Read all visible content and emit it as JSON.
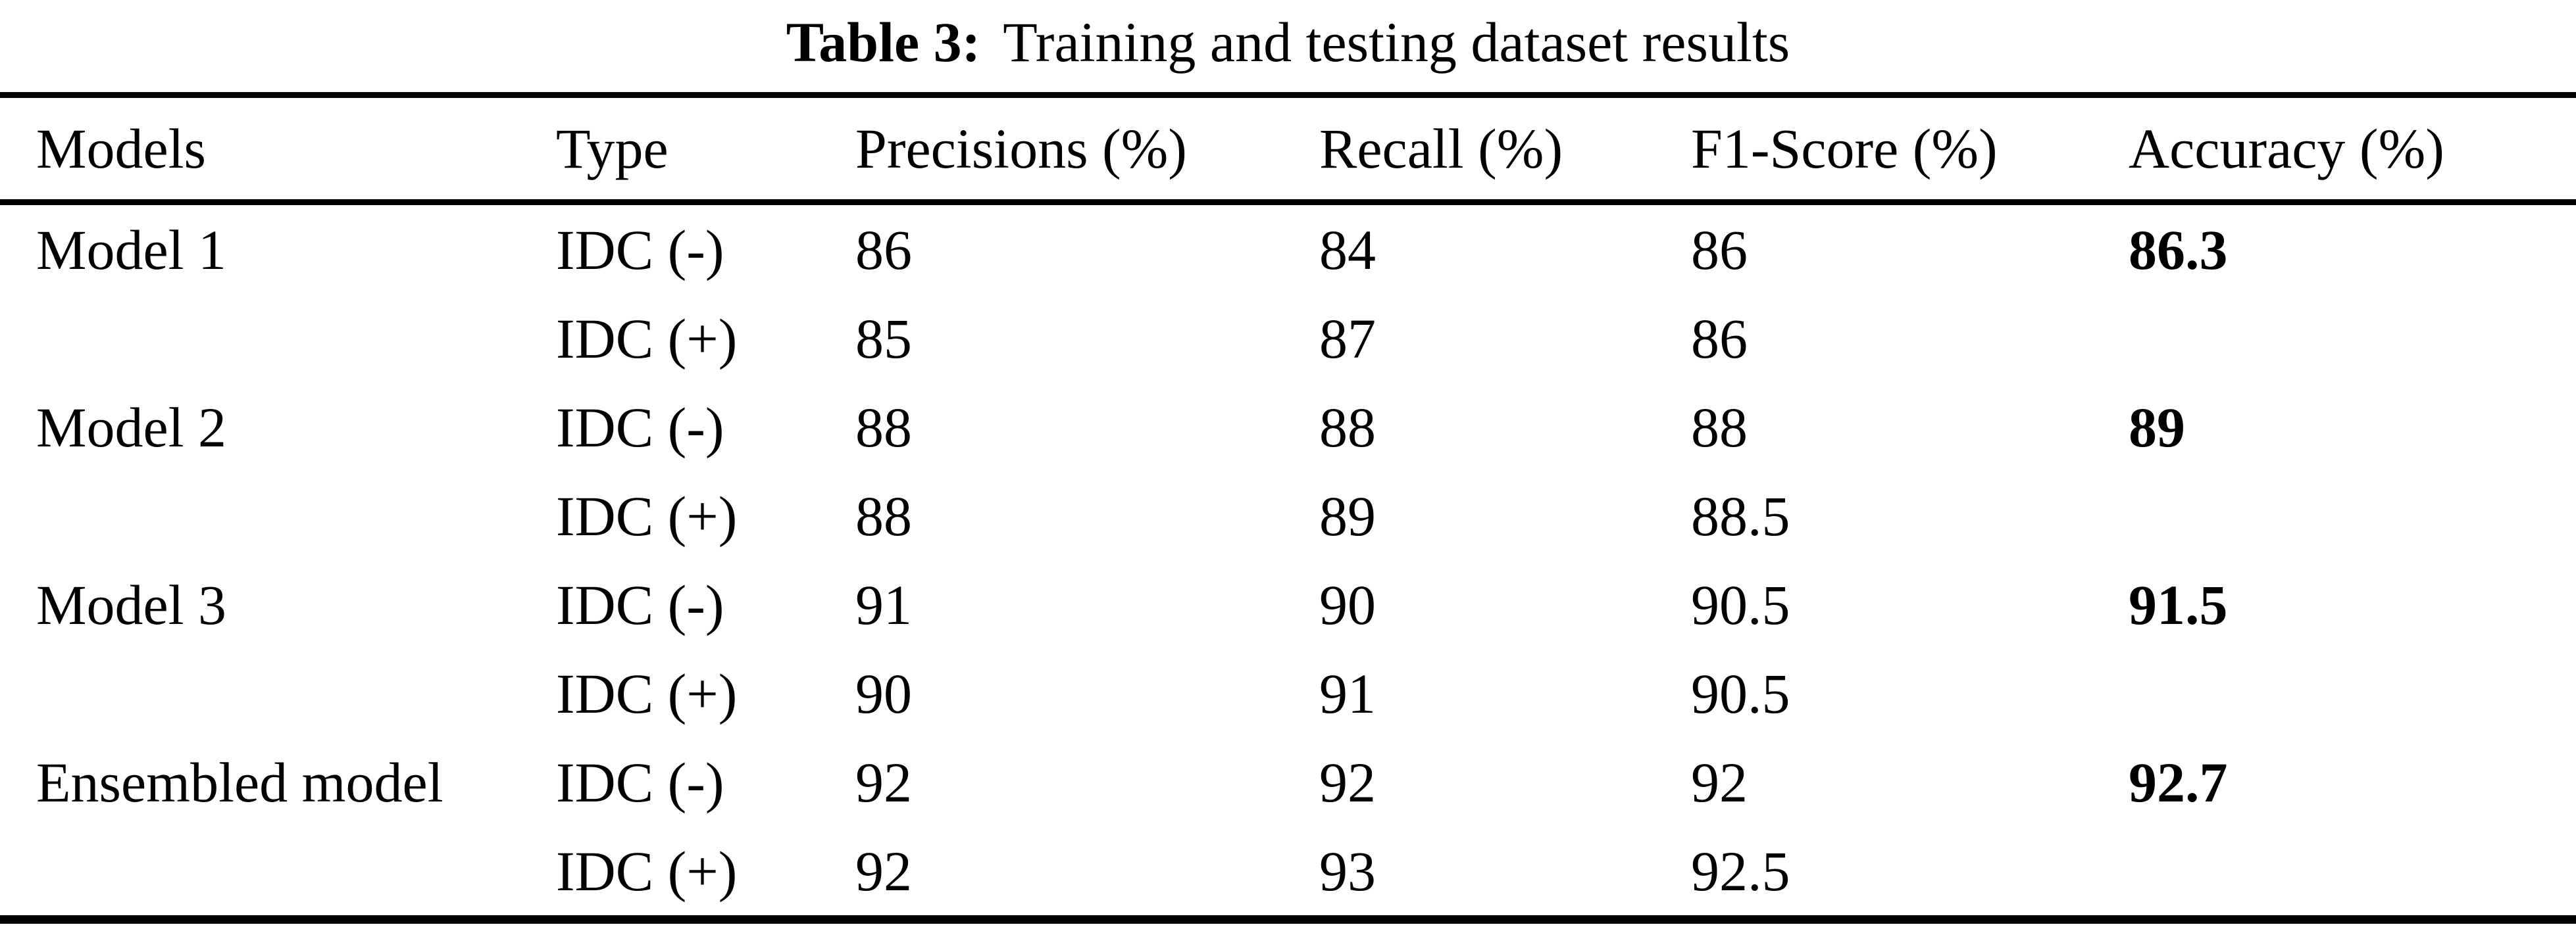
{
  "caption": {
    "label": "Table 3:",
    "text": "Training and testing dataset results"
  },
  "colors": {
    "text": "#000000",
    "background": "#ffffff"
  },
  "chart_data": {
    "type": "table",
    "title": "Table 3: Training and testing dataset results",
    "columns": [
      "Models",
      "Type",
      "Precisions (%)",
      "Recall (%)",
      "F1-Score (%)",
      "Accuracy (%)"
    ],
    "rows": [
      {
        "model": "Model 1",
        "type": "IDC (-)",
        "precision": "86",
        "recall": "84",
        "f1": "86",
        "accuracy": "86.3"
      },
      {
        "model": "",
        "type": "IDC (+)",
        "precision": "85",
        "recall": "87",
        "f1": "86",
        "accuracy": ""
      },
      {
        "model": "Model 2",
        "type": "IDC (-)",
        "precision": "88",
        "recall": "88",
        "f1": "88",
        "accuracy": "89"
      },
      {
        "model": "",
        "type": "IDC (+)",
        "precision": "88",
        "recall": "89",
        "f1": "88.5",
        "accuracy": ""
      },
      {
        "model": "Model 3",
        "type": "IDC (-)",
        "precision": "91",
        "recall": "90",
        "f1": "90.5",
        "accuracy": "91.5"
      },
      {
        "model": "",
        "type": "IDC (+)",
        "precision": "90",
        "recall": "91",
        "f1": "90.5",
        "accuracy": ""
      },
      {
        "model": "Ensembled model",
        "type": "IDC (-)",
        "precision": "92",
        "recall": "92",
        "f1": "92",
        "accuracy": "92.7"
      },
      {
        "model": "",
        "type": "IDC (+)",
        "precision": "92",
        "recall": "93",
        "f1": "92.5",
        "accuracy": ""
      }
    ]
  }
}
